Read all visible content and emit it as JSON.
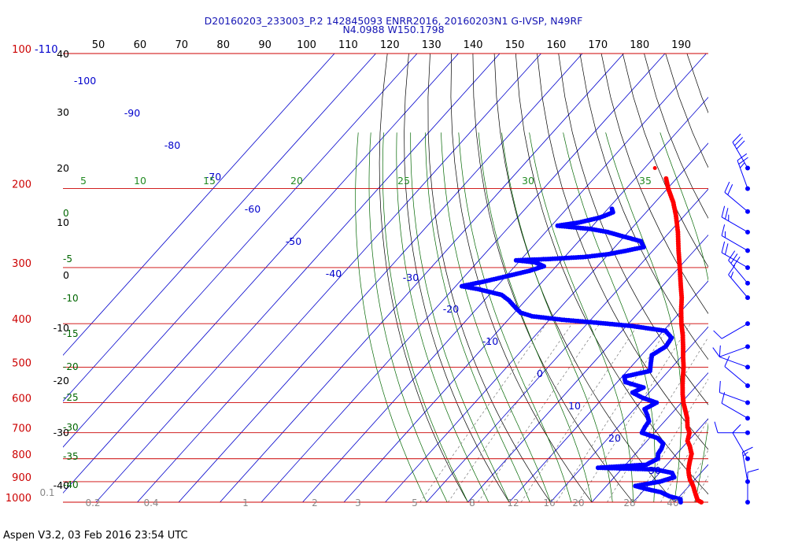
{
  "chart_data": {
    "type": "skew-t",
    "title_line1": "D20160203_233003_P.2 142845093 ENRR2016, 20160203N1 G-IVSP, N49RF",
    "title_line2": "N4.0988 W150.1798",
    "footer": "Aspen V3.2, 03 Feb 2016  23:54 UTC",
    "top_label": "-110",
    "pressure_labels": [
      "100",
      "200",
      "300",
      "400",
      "500",
      "600",
      "700",
      "800",
      "900",
      "1000"
    ],
    "pressure_values": [
      100,
      200,
      300,
      400,
      500,
      600,
      700,
      800,
      900,
      1000
    ],
    "top_scale_labels": [
      "50",
      "60",
      "70",
      "80",
      "90",
      "100",
      "110",
      "120",
      "130",
      "140",
      "150",
      "160",
      "170",
      "180",
      "190"
    ],
    "height_kft": [
      "40",
      "30",
      "20",
      "10",
      "0",
      "-10",
      "-20",
      "-30",
      "-40"
    ],
    "height_kft_values": [
      40,
      30,
      20,
      10,
      0,
      -10,
      -20,
      -30,
      -40
    ],
    "isotherm_labels": [
      "-100",
      "-90",
      "-80",
      "-70",
      "-60",
      "-50",
      "-40",
      "-30",
      "-20",
      "-10",
      "0",
      "10",
      "20",
      "30"
    ],
    "isotherm_values": [
      -100,
      -90,
      -80,
      -70,
      -60,
      -50,
      -40,
      -30,
      -20,
      -10,
      0,
      10,
      20,
      30
    ],
    "mixing_ratio_labels": [
      "0.1",
      "0.2",
      "0.4",
      "1",
      "2",
      "3",
      "5",
      "8",
      "12",
      "16",
      "20",
      "28",
      "40"
    ],
    "dry_adiabat_labels": [
      "5",
      "10",
      "15",
      "20",
      "25",
      "30",
      "35"
    ],
    "moist_adiabat_labels": [
      "0",
      "-5",
      "-10",
      "-15",
      "-20",
      "-25",
      "-30",
      "-35",
      "-40"
    ],
    "temperature_profile": [
      {
        "p": 1000,
        "t": 26.5
      },
      {
        "p": 990,
        "t": 25.2
      },
      {
        "p": 975,
        "t": 24.3
      },
      {
        "p": 960,
        "t": 23.4
      },
      {
        "p": 950,
        "t": 22.8
      },
      {
        "p": 930,
        "t": 21.6
      },
      {
        "p": 910,
        "t": 20.3
      },
      {
        "p": 890,
        "t": 18.8
      },
      {
        "p": 870,
        "t": 17.6
      },
      {
        "p": 850,
        "t": 16.5
      },
      {
        "p": 830,
        "t": 15.6
      },
      {
        "p": 810,
        "t": 14.8
      },
      {
        "p": 780,
        "t": 13.6
      },
      {
        "p": 750,
        "t": 11.5
      },
      {
        "p": 730,
        "t": 9.8
      },
      {
        "p": 700,
        "t": 8.5
      },
      {
        "p": 680,
        "t": 6.8
      },
      {
        "p": 650,
        "t": 4.8
      },
      {
        "p": 625,
        "t": 2.7
      },
      {
        "p": 600,
        "t": 0.5
      },
      {
        "p": 575,
        "t": -1.5
      },
      {
        "p": 550,
        "t": -3.4
      },
      {
        "p": 525,
        "t": -5.3
      },
      {
        "p": 500,
        "t": -7.2
      },
      {
        "p": 475,
        "t": -9.5
      },
      {
        "p": 450,
        "t": -11.8
      },
      {
        "p": 425,
        "t": -14.3
      },
      {
        "p": 400,
        "t": -17.2
      },
      {
        "p": 375,
        "t": -20.0
      },
      {
        "p": 350,
        "t": -22.8
      },
      {
        "p": 325,
        "t": -26.2
      },
      {
        "p": 300,
        "t": -29.8
      },
      {
        "p": 275,
        "t": -33.8
      },
      {
        "p": 250,
        "t": -38.0
      },
      {
        "p": 230,
        "t": -42.0
      },
      {
        "p": 215,
        "t": -45.5
      },
      {
        "p": 200,
        "t": -49.8
      },
      {
        "p": 190,
        "t": -52.5
      }
    ],
    "dewpoint_profile": [
      {
        "p": 1000,
        "t": 21.5
      },
      {
        "p": 985,
        "t": 20.8
      },
      {
        "p": 970,
        "t": 17.5
      },
      {
        "p": 950,
        "t": 14.5
      },
      {
        "p": 935,
        "t": 10.5
      },
      {
        "p": 920,
        "t": 7.0
      },
      {
        "p": 900,
        "t": 12.0
      },
      {
        "p": 880,
        "t": 14.5
      },
      {
        "p": 860,
        "t": 13.0
      },
      {
        "p": 845,
        "t": 8.0
      },
      {
        "p": 838,
        "t": -6.0
      },
      {
        "p": 825,
        "t": 5.0
      },
      {
        "p": 800,
        "t": 6.5
      },
      {
        "p": 780,
        "t": 5.5
      },
      {
        "p": 760,
        "t": 5.2
      },
      {
        "p": 740,
        "t": 4.5
      },
      {
        "p": 720,
        "t": 2.0
      },
      {
        "p": 700,
        "t": -3.0
      },
      {
        "p": 680,
        "t": -3.5
      },
      {
        "p": 660,
        "t": -3.8
      },
      {
        "p": 640,
        "t": -5.5
      },
      {
        "p": 620,
        "t": -7.5
      },
      {
        "p": 600,
        "t": -6.0
      },
      {
        "p": 585,
        "t": -10.5
      },
      {
        "p": 570,
        "t": -14.0
      },
      {
        "p": 555,
        "t": -12.5
      },
      {
        "p": 540,
        "t": -18.0
      },
      {
        "p": 525,
        "t": -19.5
      },
      {
        "p": 510,
        "t": -14.5
      },
      {
        "p": 490,
        "t": -16.0
      },
      {
        "p": 470,
        "t": -17.5
      },
      {
        "p": 450,
        "t": -16.0
      },
      {
        "p": 430,
        "t": -16.5
      },
      {
        "p": 415,
        "t": -19.5
      },
      {
        "p": 405,
        "t": -28.5
      },
      {
        "p": 398,
        "t": -38.0
      },
      {
        "p": 392,
        "t": -47.0
      },
      {
        "p": 385,
        "t": -55.0
      },
      {
        "p": 378,
        "t": -58.5
      },
      {
        "p": 370,
        "t": -60.5
      },
      {
        "p": 355,
        "t": -64.0
      },
      {
        "p": 345,
        "t": -67.0
      },
      {
        "p": 335,
        "t": -74.0
      },
      {
        "p": 330,
        "t": -78.5
      },
      {
        "p": 322,
        "t": -74.0
      },
      {
        "p": 315,
        "t": -70.5
      },
      {
        "p": 305,
        "t": -65.5
      },
      {
        "p": 298,
        "t": -63.0
      },
      {
        "p": 292,
        "t": -66.0
      },
      {
        "p": 289,
        "t": -71.0
      },
      {
        "p": 287,
        "t": -63.0
      },
      {
        "p": 284,
        "t": -55.0
      },
      {
        "p": 280,
        "t": -50.0
      },
      {
        "p": 276,
        "t": -47.0
      },
      {
        "p": 270,
        "t": -43.0
      },
      {
        "p": 262,
        "t": -45.0
      },
      {
        "p": 256,
        "t": -50.0
      },
      {
        "p": 250,
        "t": -55.0
      },
      {
        "p": 246,
        "t": -60.0
      },
      {
        "p": 242,
        "t": -68.5
      },
      {
        "p": 238,
        "t": -64.0
      },
      {
        "p": 232,
        "t": -60.0
      },
      {
        "p": 226,
        "t": -58.0
      },
      {
        "p": 222,
        "t": -59.0
      }
    ],
    "isolated_point": {
      "p": 180,
      "t": -57.5
    },
    "wind_barbs": [
      {
        "p": 180,
        "dir": 330,
        "spd": 30
      },
      {
        "p": 200,
        "dir": 340,
        "spd": 25
      },
      {
        "p": 225,
        "dir": 310,
        "spd": 20
      },
      {
        "p": 250,
        "dir": 300,
        "spd": 25
      },
      {
        "p": 275,
        "dir": 300,
        "spd": 15
      },
      {
        "p": 300,
        "dir": 300,
        "spd": 20
      },
      {
        "p": 325,
        "dir": 320,
        "spd": 30
      },
      {
        "p": 350,
        "dir": 320,
        "spd": 15
      },
      {
        "p": 400,
        "dir": 240,
        "spd": 10
      },
      {
        "p": 450,
        "dir": 250,
        "spd": 10
      },
      {
        "p": 500,
        "dir": 290,
        "spd": 10
      },
      {
        "p": 550,
        "dir": 310,
        "spd": 10
      },
      {
        "p": 600,
        "dir": 290,
        "spd": 10
      },
      {
        "p": 650,
        "dir": 300,
        "spd": 10
      },
      {
        "p": 700,
        "dir": 270,
        "spd": 10
      },
      {
        "p": 800,
        "dir": 330,
        "spd": 10
      },
      {
        "p": 900,
        "dir": 350,
        "spd": 15
      },
      {
        "p": 1000,
        "dir": 0,
        "spd": 10
      }
    ],
    "colors": {
      "temperature": "#ff0000",
      "dewpoint": "#0000ff",
      "isobar": "#cc0000",
      "isotherm": "#0000cc",
      "dry_adiabat": "#000000",
      "moist_adiabat": "#006600",
      "mixing_ratio": "#777777",
      "height": "#000000"
    }
  }
}
